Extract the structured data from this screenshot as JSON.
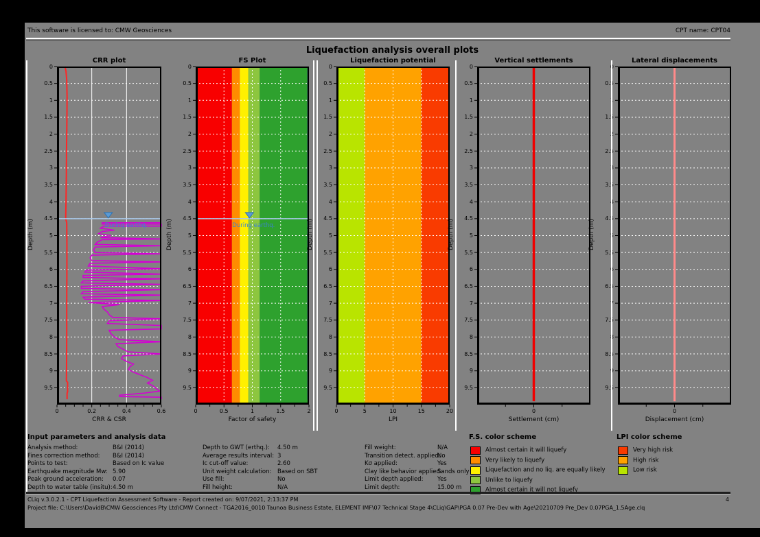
{
  "header": {
    "license_text": "This software is licensed to: CMW Geosciences",
    "cpt_name": "CPT name: CPT04"
  },
  "title": "Liquefaction analysis overall plots",
  "depth_axis": {
    "label": "Depth (m)",
    "min": 0,
    "max": 10,
    "ticks": [
      "0",
      "0.5",
      "1",
      "1.5",
      "2",
      "2.5",
      "3",
      "3.5",
      "4",
      "4.5",
      "5",
      "5.5",
      "6",
      "6.5",
      "7",
      "7.5",
      "8",
      "8.5",
      "9",
      "9.5"
    ]
  },
  "gwt": {
    "label": "During earthq.",
    "depth": 4.5
  },
  "chart_data": [
    {
      "type": "line",
      "title": "CRR plot",
      "xlabel": "CRR & CSR",
      "xmin": 0,
      "xmax": 0.6,
      "xticks": [
        {
          "v": 0,
          "t": "0"
        },
        {
          "v": 0.2,
          "t": "0.2"
        },
        {
          "v": 0.4,
          "t": "0.4"
        },
        {
          "v": 0.6,
          "t": "0.6"
        }
      ],
      "xminor": [
        0.05,
        0.1,
        0.15,
        0.25,
        0.3,
        0.35,
        0.45,
        0.5,
        0.55
      ],
      "vgrid": [
        0.2,
        0.4
      ],
      "vgrid_style": "solid",
      "bands": [],
      "gwt_x": 0.295,
      "gwt_dx": 26,
      "series": [
        {
          "name": "CSR",
          "color": "#ff2626",
          "width": 2,
          "points": [
            [
              0,
              0.046
            ],
            [
              0.15,
              0.052
            ],
            [
              0.4,
              0.056
            ],
            [
              0.9,
              0.058
            ],
            [
              1.6,
              0.057
            ],
            [
              2.4,
              0.055
            ],
            [
              3.2,
              0.054
            ],
            [
              4.0,
              0.052
            ],
            [
              4.5,
              0.05
            ],
            [
              4.62,
              0.056
            ],
            [
              5.2,
              0.057
            ],
            [
              6.0,
              0.057
            ],
            [
              7.0,
              0.056
            ],
            [
              8.0,
              0.056
            ],
            [
              9.0,
              0.055
            ],
            [
              9.3,
              0.054
            ],
            [
              9.34,
              0.061
            ],
            [
              9.62,
              0.061
            ],
            [
              9.66,
              0.058
            ],
            [
              9.84,
              0.058
            ]
          ]
        },
        {
          "name": "CRR",
          "color": "#d400d4",
          "width": 1.6,
          "points": [
            [
              4.62,
              0.6
            ],
            [
              4.62,
              0.26
            ],
            [
              4.66,
              0.26
            ],
            [
              4.66,
              0.6
            ],
            [
              4.72,
              0.6
            ],
            [
              4.72,
              0.27
            ],
            [
              4.78,
              0.25
            ],
            [
              4.84,
              0.33
            ],
            [
              4.88,
              0.26
            ],
            [
              4.94,
              0.24
            ],
            [
              5.0,
              0.31
            ],
            [
              5.06,
              0.25
            ],
            [
              5.1,
              0.6
            ],
            [
              5.12,
              0.26
            ],
            [
              5.2,
              0.23
            ],
            [
              5.26,
              0.22
            ],
            [
              5.3,
              0.6
            ],
            [
              5.34,
              0.22
            ],
            [
              5.42,
              0.21
            ],
            [
              5.5,
              0.22
            ],
            [
              5.54,
              0.6
            ],
            [
              5.58,
              0.2
            ],
            [
              5.66,
              0.19
            ],
            [
              5.74,
              0.2
            ],
            [
              5.78,
              0.6
            ],
            [
              5.82,
              0.19
            ],
            [
              5.9,
              0.18
            ],
            [
              5.98,
              0.6
            ],
            [
              6.02,
              0.17
            ],
            [
              6.08,
              0.16
            ],
            [
              6.14,
              0.6
            ],
            [
              6.18,
              0.15
            ],
            [
              6.24,
              0.15
            ],
            [
              6.28,
              0.6
            ],
            [
              6.34,
              0.15
            ],
            [
              6.4,
              0.14
            ],
            [
              6.44,
              0.6
            ],
            [
              6.5,
              0.14
            ],
            [
              6.56,
              0.14
            ],
            [
              6.6,
              0.6
            ],
            [
              6.66,
              0.15
            ],
            [
              6.72,
              0.14
            ],
            [
              6.76,
              0.6
            ],
            [
              6.82,
              0.15
            ],
            [
              6.88,
              0.16
            ],
            [
              6.92,
              0.6
            ],
            [
              6.98,
              0.18
            ],
            [
              7.04,
              0.36
            ],
            [
              7.1,
              0.26
            ],
            [
              7.18,
              0.27
            ],
            [
              7.26,
              0.29
            ],
            [
              7.34,
              0.3
            ],
            [
              7.42,
              0.32
            ],
            [
              7.46,
              0.6
            ],
            [
              7.52,
              0.3
            ],
            [
              7.6,
              0.29
            ],
            [
              7.66,
              0.6
            ],
            [
              7.76,
              0.6
            ],
            [
              7.8,
              0.3
            ],
            [
              7.9,
              0.31
            ],
            [
              8.0,
              0.33
            ],
            [
              8.08,
              0.36
            ],
            [
              8.14,
              0.6
            ],
            [
              8.2,
              0.34
            ],
            [
              8.28,
              0.35
            ],
            [
              8.36,
              0.38
            ],
            [
              8.44,
              0.41
            ],
            [
              8.5,
              0.6
            ],
            [
              8.56,
              0.38
            ],
            [
              8.64,
              0.37
            ],
            [
              8.72,
              0.4
            ],
            [
              8.8,
              0.44
            ],
            [
              8.88,
              0.42
            ],
            [
              8.96,
              0.41
            ],
            [
              9.04,
              0.44
            ],
            [
              9.12,
              0.48
            ],
            [
              9.2,
              0.52
            ],
            [
              9.28,
              0.55
            ],
            [
              9.36,
              0.52
            ],
            [
              9.44,
              0.55
            ],
            [
              9.52,
              0.57
            ],
            [
              9.6,
              0.59
            ],
            [
              9.66,
              0.5
            ],
            [
              9.72,
              0.36
            ],
            [
              9.76,
              0.36
            ],
            [
              9.78,
              0.6
            ],
            [
              9.84,
              0.6
            ]
          ]
        }
      ]
    },
    {
      "type": "line",
      "title": "FS Plot",
      "xlabel": "Factor of safety",
      "xmin": 0,
      "xmax": 2,
      "xticks": [
        {
          "v": 0,
          "t": "0"
        },
        {
          "v": 0.5,
          "t": "0.5"
        },
        {
          "v": 1,
          "t": "1"
        },
        {
          "v": 1.5,
          "t": "1.5"
        },
        {
          "v": 2,
          "t": "2"
        }
      ],
      "xminor": [
        0.25,
        0.75,
        1.25,
        1.75
      ],
      "vgrid": [
        0.5,
        1,
        1.5
      ],
      "vgrid_style": "dashed",
      "bands": [
        {
          "from": 0,
          "to": 0.64,
          "color": "#f80000",
          "label": "Almost certain it will liquefy"
        },
        {
          "from": 0.64,
          "to": 0.78,
          "color": "#ff8c00",
          "label": "Very likely to liquefy"
        },
        {
          "from": 0.78,
          "to": 0.93,
          "color": "#fff000",
          "label": "Liquefaction and no liq. are equally likely"
        },
        {
          "from": 0.93,
          "to": 1.13,
          "color": "#8dc63f",
          "label": "Unlike to liquefy"
        },
        {
          "from": 1.13,
          "to": 2,
          "color": "#2ea12e",
          "label": "Almost certain it will not liquefy"
        }
      ],
      "gwt_x": 0.95,
      "gwt_dx": 6,
      "series": [
        {
          "name": "FS",
          "color": "#3030c8",
          "width": 2,
          "points": [
            [
              0,
              1.985
            ],
            [
              9.85,
              1.985
            ]
          ]
        }
      ]
    },
    {
      "type": "line",
      "title": "Liquefaction potential",
      "xlabel": "LPI",
      "xmin": 0,
      "xmax": 20,
      "xticks": [
        {
          "v": 0,
          "t": "0"
        },
        {
          "v": 5,
          "t": "5"
        },
        {
          "v": 10,
          "t": "10"
        },
        {
          "v": 15,
          "t": "15"
        },
        {
          "v": 20,
          "t": "20"
        }
      ],
      "xminor": [
        2.5,
        7.5,
        12.5,
        17.5
      ],
      "vgrid": [
        5,
        10,
        15
      ],
      "vgrid_style": "dashed",
      "bands": [
        {
          "from": 0,
          "to": 5,
          "color": "#b9e400",
          "label": "Low risk"
        },
        {
          "from": 5,
          "to": 15,
          "color": "#ffa200",
          "label": "High risk"
        },
        {
          "from": 15,
          "to": 20,
          "color": "#f93b00",
          "label": "Very high risk"
        }
      ],
      "series": []
    },
    {
      "type": "line",
      "title": "Vertical settlements",
      "xlabel": "Settlement (cm)",
      "xmin": -5,
      "xmax": 5,
      "xticks": [
        {
          "v": 0,
          "t": "0"
        }
      ],
      "xminor": [
        -2.5,
        2.5
      ],
      "vgrid": [],
      "vgrid_style": "dashed",
      "bands": [],
      "series": [
        {
          "name": "Settlement",
          "color": "#f00000",
          "width": 3.5,
          "points": [
            [
              0,
              0
            ],
            [
              9.9,
              0
            ]
          ]
        }
      ]
    },
    {
      "type": "line",
      "title": "Lateral displacements",
      "xlabel": "Displacement (cm)",
      "xmin": -5,
      "xmax": 5,
      "xticks": [
        {
          "v": 0,
          "t": "0"
        }
      ],
      "xminor": [
        -2.5,
        2.5
      ],
      "vgrid": [],
      "vgrid_style": "dashed",
      "bands": [],
      "series": [
        {
          "name": "Displacement",
          "color": "#ff8a8a",
          "width": 3,
          "points": [
            [
              0,
              0
            ],
            [
              9.9,
              0
            ]
          ]
        }
      ]
    }
  ],
  "input_parameters": {
    "heading": "Input parameters and analysis data",
    "columns": [
      [
        {
          "label": "Analysis method:",
          "value": "B&I (2014)"
        },
        {
          "label": "Fines correction method:",
          "value": "B&I (2014)"
        },
        {
          "label": "Points to test:",
          "value": "Based on Ic value"
        },
        {
          "label": "Earthquake magnitude Mw:",
          "value": "5.90"
        },
        {
          "label": "Peak ground acceleration:",
          "value": "0.07"
        },
        {
          "label": "Depth to water table (insitu):",
          "value": "4.50 m"
        }
      ],
      [
        {
          "label": "Depth to GWT (erthq.):",
          "value": "4.50 m"
        },
        {
          "label": "Average results interval:",
          "value": "3"
        },
        {
          "label": "Ic cut-off value:",
          "value": "2.60"
        },
        {
          "label": "Unit weight calculation:",
          "value": "Based on SBT"
        },
        {
          "label": "Use fill:",
          "value": "No"
        },
        {
          "label": "Fill height:",
          "value": "N/A"
        }
      ],
      [
        {
          "label": "Fill weight:",
          "value": "N/A"
        },
        {
          "label": "Transition detect. applied:",
          "value": "No"
        },
        {
          "label": "Kσ applied:",
          "value": "Yes"
        },
        {
          "label": "Clay like behavior applied:",
          "value": "Sands only"
        },
        {
          "label": "Limit depth applied:",
          "value": "Yes"
        },
        {
          "label": "Limit depth:",
          "value": "15.00 m"
        }
      ]
    ]
  },
  "fs_legend": {
    "heading": "F.S. color scheme",
    "items": [
      {
        "color": "#f80000",
        "label": "Almost certain it will liquefy"
      },
      {
        "color": "#ff8c00",
        "label": "Very likely to liquefy"
      },
      {
        "color": "#fff000",
        "label": "Liquefaction and no liq. are equally likely"
      },
      {
        "color": "#8dc63f",
        "label": "Unlike to liquefy"
      },
      {
        "color": "#2ea12e",
        "label": "Almost certain it will not liquefy"
      }
    ]
  },
  "lpi_legend": {
    "heading": "LPI color scheme",
    "items": [
      {
        "color": "#f93b00",
        "label": "Very high risk"
      },
      {
        "color": "#ffa200",
        "label": "High risk"
      },
      {
        "color": "#b9e400",
        "label": "Low risk"
      }
    ]
  },
  "footer": {
    "line1": "CLiq v.3.0.2.1 - CPT Liquefaction Assessment Software - Report created on: 9/07/2021, 2:13:37 PM",
    "line2": "Project file: C:\\Users\\DavidB\\CMW Geosciences Pty Ltd\\CMW Connect - TGA2016_0010 Taunoa Business Estate, ELEMENT IMF\\07 Technical Stage 4\\CLiq\\GAP\\PGA 0.07 Pre-Dev with Age\\20210709 Pre_Dev 0.07PGA_1.5Age.clq",
    "page": "4"
  }
}
